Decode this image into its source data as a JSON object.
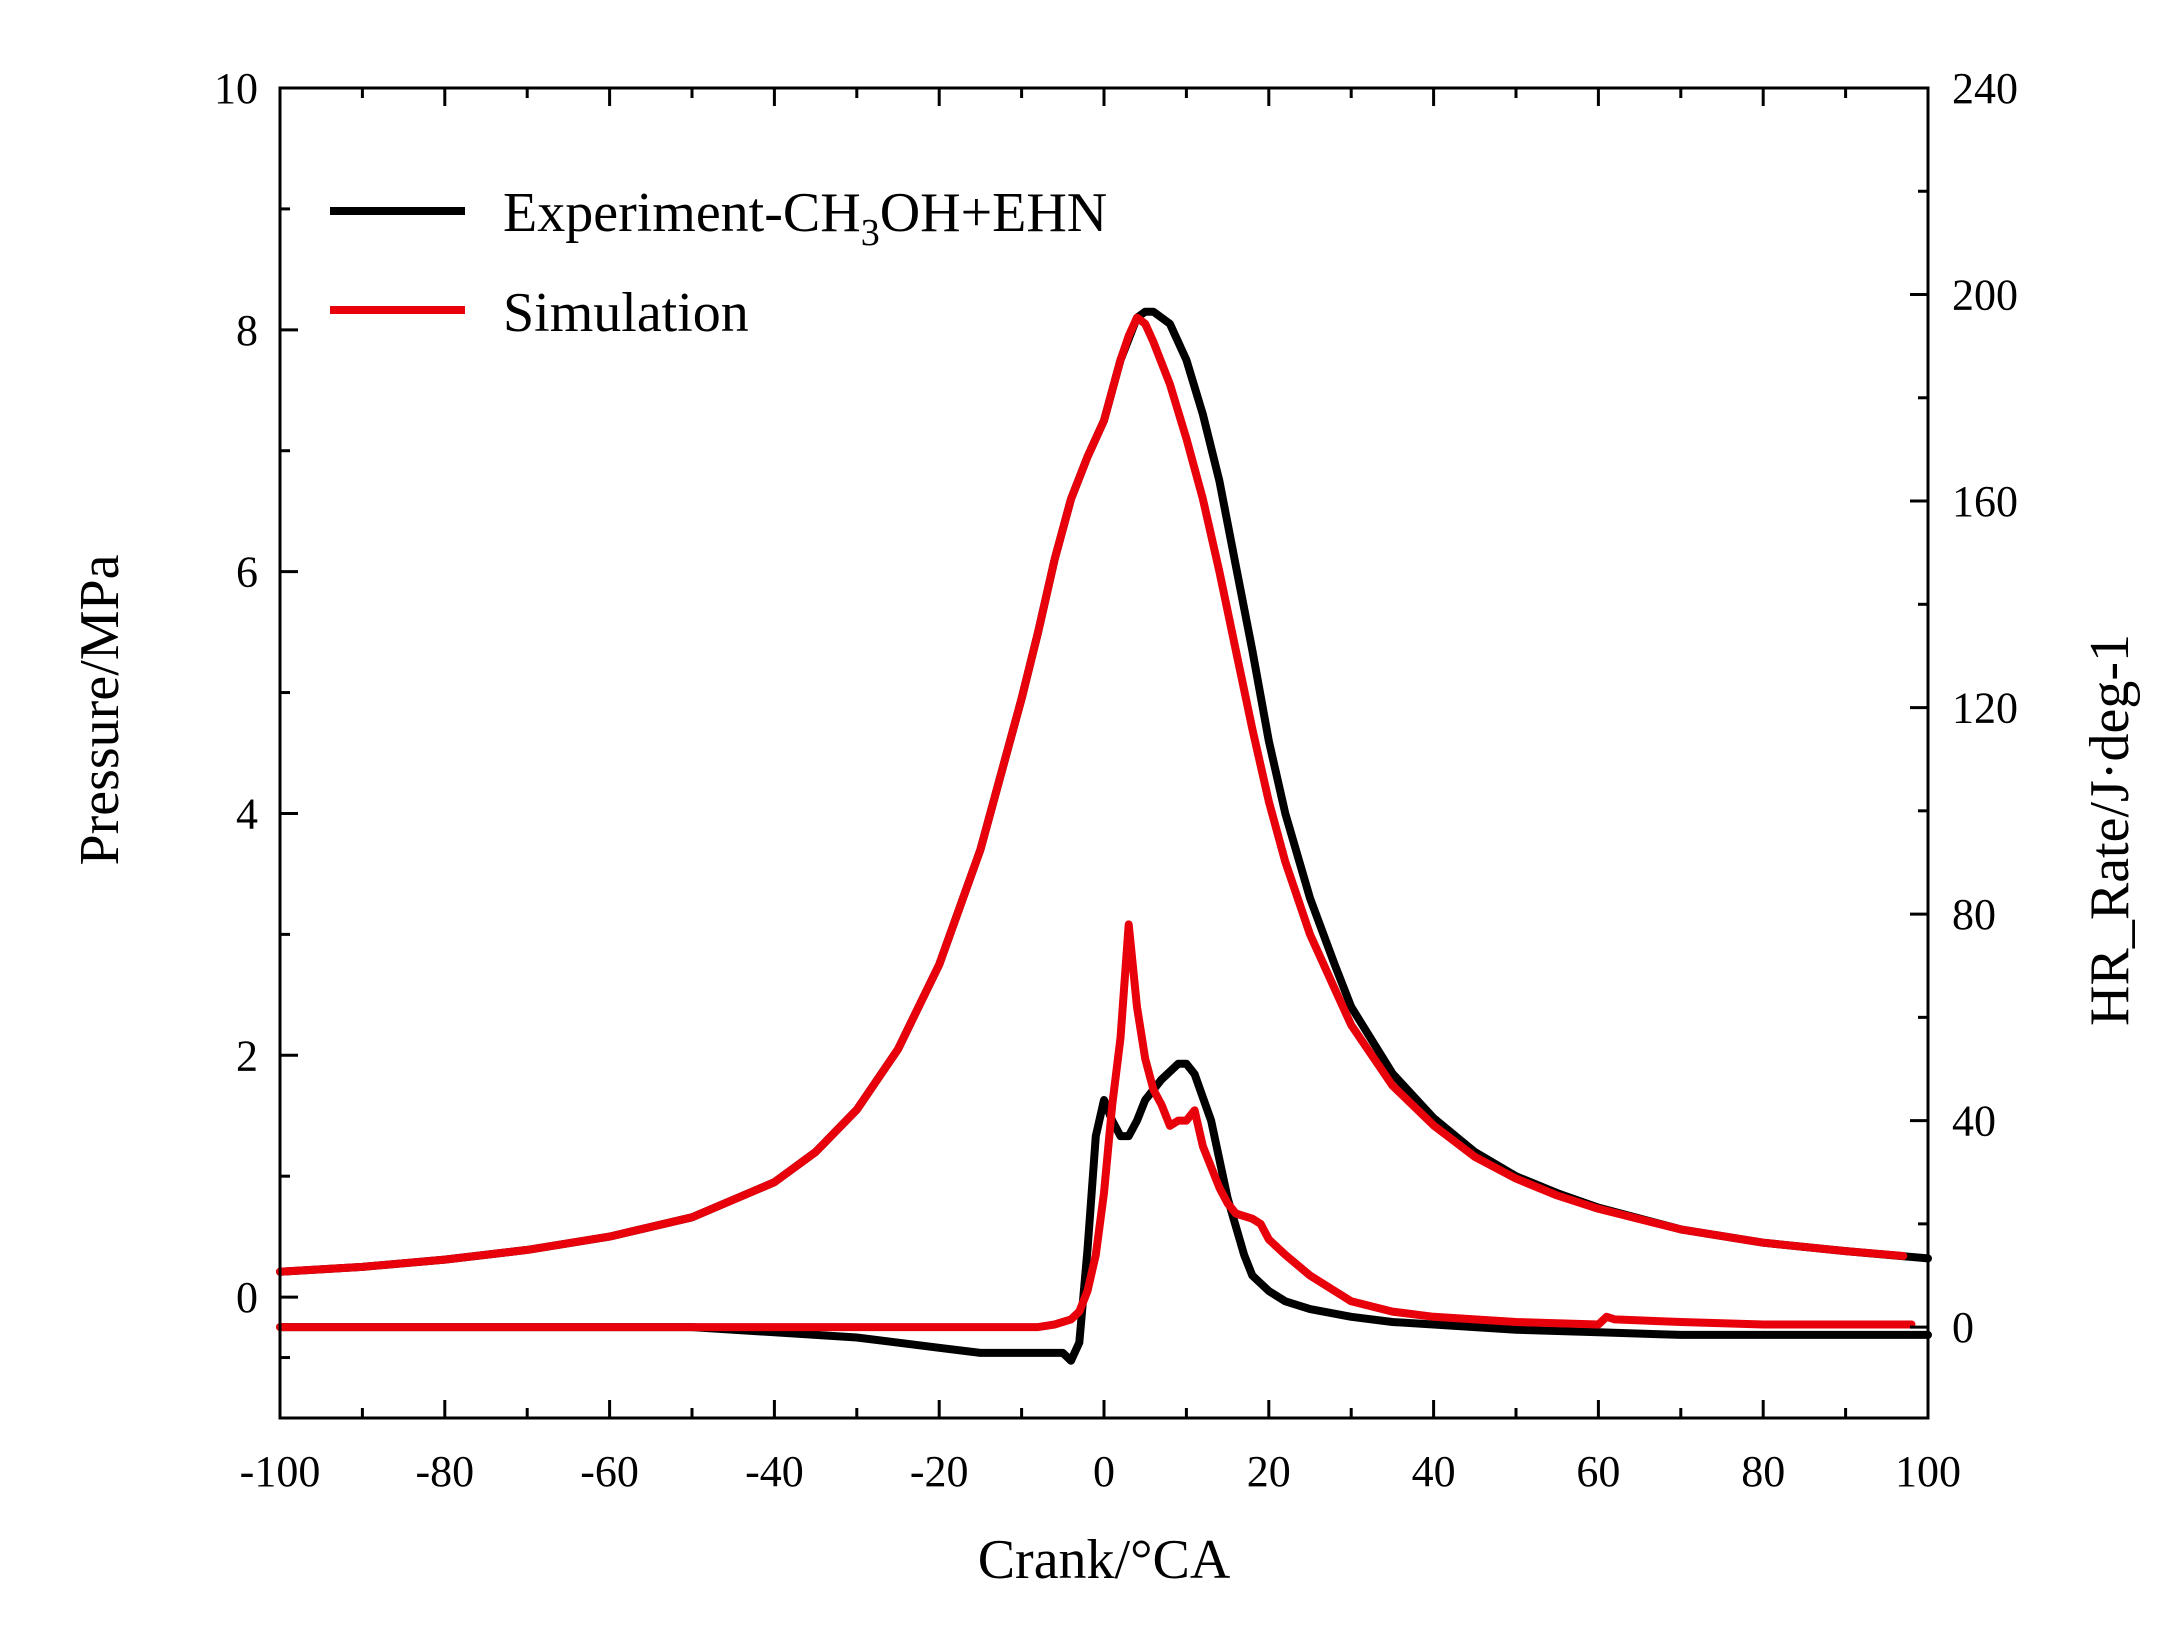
{
  "chart_data": {
    "type": "line",
    "xlabel": "Crank/°CA",
    "ylabel_left": "Pressure/MPa",
    "ylabel_right": "HR_Rate/J·deg-1",
    "xlim": [
      -100,
      100
    ],
    "ylim_left": [
      -1,
      10
    ],
    "ylim_right": [
      -17.6,
      240
    ],
    "x_ticks": [
      "-100",
      "-80",
      "-60",
      "-40",
      "-20",
      "0",
      "20",
      "40",
      "60",
      "80",
      "100"
    ],
    "y_left_ticks": [
      "0",
      "2",
      "4",
      "6",
      "8",
      "10"
    ],
    "y_right_ticks": [
      "0",
      "40",
      "80",
      "120",
      "160",
      "200",
      "240"
    ],
    "legend": {
      "position": "top-left",
      "entries": [
        {
          "name": "Experiment-CH3OH+EHN",
          "main": "Experiment-CH",
          "sub": "3",
          "rest": "OH+EHN",
          "color": "#000000"
        },
        {
          "name": "Simulation",
          "main": "Simulation",
          "color": "#e8000b"
        }
      ]
    },
    "series": [
      {
        "name": "Experiment-CH3OH+EHN pressure",
        "axis": "left",
        "color": "#000000",
        "points": [
          [
            -100,
            0.21
          ],
          [
            -90,
            0.25
          ],
          [
            -80,
            0.31
          ],
          [
            -70,
            0.39
          ],
          [
            -60,
            0.5
          ],
          [
            -50,
            0.66
          ],
          [
            -40,
            0.95
          ],
          [
            -35,
            1.2
          ],
          [
            -30,
            1.55
          ],
          [
            -25,
            2.05
          ],
          [
            -20,
            2.75
          ],
          [
            -15,
            3.7
          ],
          [
            -10,
            4.95
          ],
          [
            -8,
            5.5
          ],
          [
            -6,
            6.1
          ],
          [
            -4,
            6.6
          ],
          [
            -2,
            6.95
          ],
          [
            0,
            7.25
          ],
          [
            2,
            7.75
          ],
          [
            4,
            8.1
          ],
          [
            5,
            8.15
          ],
          [
            6,
            8.15
          ],
          [
            8,
            8.05
          ],
          [
            10,
            7.75
          ],
          [
            12,
            7.3
          ],
          [
            14,
            6.75
          ],
          [
            16,
            6.05
          ],
          [
            18,
            5.35
          ],
          [
            20,
            4.6
          ],
          [
            22,
            4.0
          ],
          [
            25,
            3.3
          ],
          [
            28,
            2.75
          ],
          [
            30,
            2.4
          ],
          [
            35,
            1.85
          ],
          [
            40,
            1.48
          ],
          [
            45,
            1.2
          ],
          [
            50,
            1.0
          ],
          [
            55,
            0.86
          ],
          [
            60,
            0.74
          ],
          [
            70,
            0.56
          ],
          [
            80,
            0.45
          ],
          [
            90,
            0.38
          ],
          [
            100,
            0.32
          ]
        ]
      },
      {
        "name": "Simulation pressure",
        "axis": "left",
        "color": "#e8000b",
        "points": [
          [
            -100,
            0.21
          ],
          [
            -90,
            0.25
          ],
          [
            -80,
            0.31
          ],
          [
            -70,
            0.39
          ],
          [
            -60,
            0.5
          ],
          [
            -50,
            0.66
          ],
          [
            -40,
            0.95
          ],
          [
            -35,
            1.2
          ],
          [
            -30,
            1.55
          ],
          [
            -25,
            2.05
          ],
          [
            -20,
            2.75
          ],
          [
            -15,
            3.7
          ],
          [
            -10,
            4.95
          ],
          [
            -8,
            5.5
          ],
          [
            -6,
            6.1
          ],
          [
            -4,
            6.6
          ],
          [
            -2,
            6.95
          ],
          [
            0,
            7.25
          ],
          [
            2,
            7.75
          ],
          [
            3,
            7.95
          ],
          [
            4,
            8.1
          ],
          [
            5,
            8.05
          ],
          [
            6,
            7.9
          ],
          [
            8,
            7.55
          ],
          [
            10,
            7.1
          ],
          [
            12,
            6.6
          ],
          [
            14,
            6.0
          ],
          [
            16,
            5.35
          ],
          [
            18,
            4.7
          ],
          [
            20,
            4.1
          ],
          [
            22,
            3.6
          ],
          [
            25,
            3.0
          ],
          [
            28,
            2.55
          ],
          [
            30,
            2.25
          ],
          [
            35,
            1.75
          ],
          [
            40,
            1.42
          ],
          [
            45,
            1.16
          ],
          [
            50,
            0.98
          ],
          [
            55,
            0.84
          ],
          [
            60,
            0.73
          ],
          [
            70,
            0.56
          ],
          [
            80,
            0.45
          ],
          [
            90,
            0.38
          ],
          [
            97,
            0.34
          ]
        ]
      },
      {
        "name": "Experiment-CH3OH+EHN heat release rate",
        "axis": "right",
        "color": "#000000",
        "points": [
          [
            -100,
            0
          ],
          [
            -60,
            0
          ],
          [
            -50,
            0
          ],
          [
            -40,
            -1
          ],
          [
            -30,
            -2
          ],
          [
            -20,
            -4
          ],
          [
            -15,
            -5
          ],
          [
            -10,
            -5
          ],
          [
            -7,
            -5
          ],
          [
            -5,
            -5
          ],
          [
            -4,
            -6.5
          ],
          [
            -3,
            -3
          ],
          [
            -2,
            15
          ],
          [
            -1,
            37
          ],
          [
            0,
            44
          ],
          [
            1,
            40
          ],
          [
            2,
            37
          ],
          [
            3,
            37
          ],
          [
            4,
            40
          ],
          [
            5,
            44
          ],
          [
            7,
            48
          ],
          [
            9,
            51
          ],
          [
            10,
            51
          ],
          [
            11,
            49
          ],
          [
            13,
            40
          ],
          [
            15,
            25
          ],
          [
            17,
            14
          ],
          [
            18,
            10
          ],
          [
            20,
            7
          ],
          [
            22,
            5
          ],
          [
            25,
            3.5
          ],
          [
            30,
            2
          ],
          [
            35,
            1
          ],
          [
            40,
            0.5
          ],
          [
            50,
            -0.5
          ],
          [
            60,
            -1
          ],
          [
            70,
            -1.5
          ],
          [
            80,
            -1.5
          ],
          [
            90,
            -1.5
          ],
          [
            100,
            -1.5
          ]
        ]
      },
      {
        "name": "Simulation heat release rate",
        "axis": "right",
        "color": "#e8000b",
        "points": [
          [
            -100,
            0
          ],
          [
            -60,
            0
          ],
          [
            -40,
            0
          ],
          [
            -20,
            0
          ],
          [
            -10,
            0
          ],
          [
            -8,
            0
          ],
          [
            -6,
            0.5
          ],
          [
            -4,
            1.5
          ],
          [
            -3,
            3
          ],
          [
            -2,
            7
          ],
          [
            -1,
            14
          ],
          [
            0,
            26
          ],
          [
            1,
            43
          ],
          [
            2,
            56
          ],
          [
            3,
            78
          ],
          [
            4,
            62
          ],
          [
            5,
            52
          ],
          [
            6,
            46
          ],
          [
            7,
            43
          ],
          [
            8,
            39
          ],
          [
            9,
            40
          ],
          [
            10,
            40
          ],
          [
            11,
            42
          ],
          [
            12,
            35
          ],
          [
            14,
            27
          ],
          [
            15,
            24
          ],
          [
            16,
            22
          ],
          [
            18,
            21
          ],
          [
            19,
            20
          ],
          [
            20,
            17
          ],
          [
            22,
            14
          ],
          [
            25,
            10
          ],
          [
            28,
            7
          ],
          [
            30,
            5
          ],
          [
            35,
            3
          ],
          [
            40,
            2
          ],
          [
            50,
            1
          ],
          [
            60,
            0.5
          ],
          [
            61,
            2
          ],
          [
            62,
            1.5
          ],
          [
            70,
            1
          ],
          [
            80,
            0.5
          ],
          [
            90,
            0.5
          ],
          [
            98,
            0.5
          ]
        ]
      }
    ]
  }
}
